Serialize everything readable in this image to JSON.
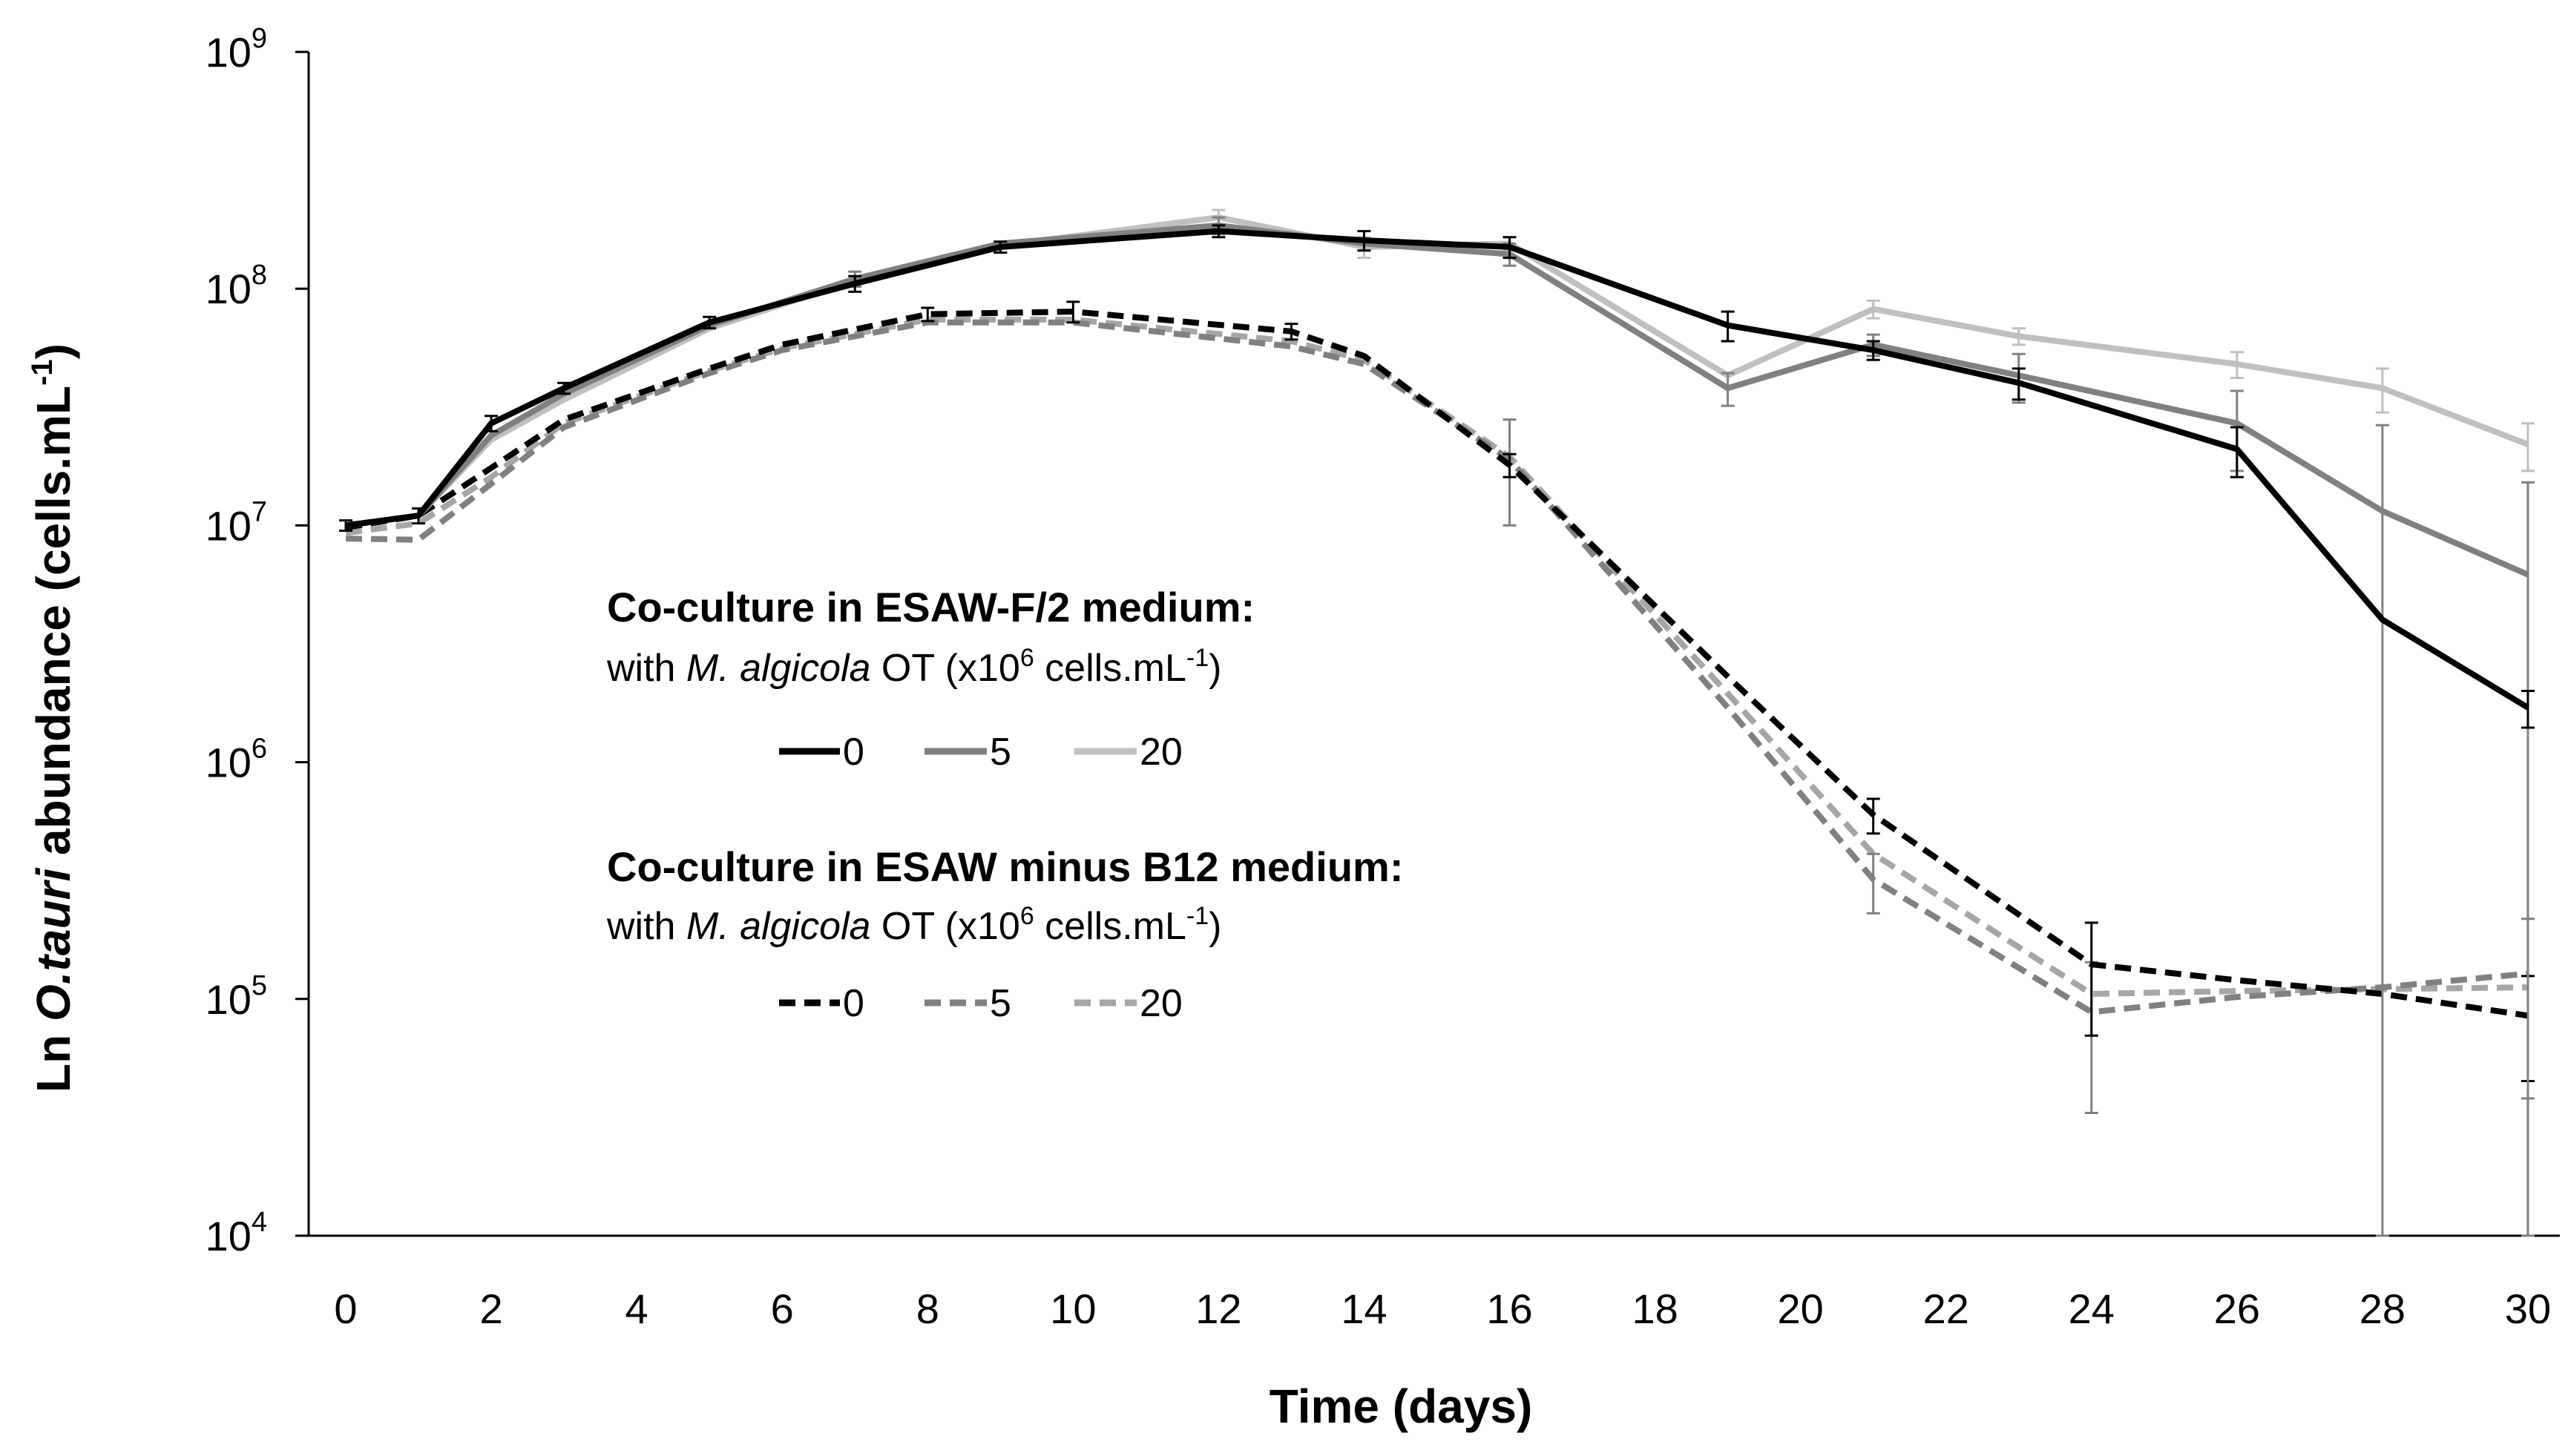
{
  "chart_data": {
    "type": "line",
    "title": "",
    "xlabel": "Time (days)",
    "ylabel": {
      "prefix": "Ln ",
      "italic": "O.tauri",
      "middle": " abundance (cells.mL",
      "sup": "-1",
      "suffix": ")"
    },
    "x_ticks": [
      "0",
      "2",
      "4",
      "6",
      "8",
      "10",
      "12",
      "14",
      "16",
      "18",
      "20",
      "22",
      "24",
      "26",
      "28",
      "30"
    ],
    "xlim": [
      0,
      30
    ],
    "y_scale": "log",
    "ylim": [
      10000,
      1000000000
    ],
    "y_ticks": [
      {
        "base": "10",
        "exp": "4",
        "value": 10000
      },
      {
        "base": "10",
        "exp": "5",
        "value": 100000
      },
      {
        "base": "10",
        "exp": "6",
        "value": 1000000
      },
      {
        "base": "10",
        "exp": "7",
        "value": 10000000
      },
      {
        "base": "10",
        "exp": "8",
        "value": 100000000
      },
      {
        "base": "10",
        "exp": "9",
        "value": 1000000000
      }
    ],
    "legend": {
      "groups": [
        {
          "title": "Co-culture in ESAW-F/2 medium:",
          "subtitle": {
            "pre": "with ",
            "italic": "M. algicola",
            "mid": " OT (x10",
            "sup1": "6",
            "mid2": " cells.mL",
            "sup2": "-1",
            "post": ")"
          },
          "entries": [
            "0",
            "5",
            "20"
          ],
          "style": "solid"
        },
        {
          "title": "Co-culture in ESAW minus B12 medium:",
          "subtitle": {
            "pre": "with ",
            "italic": "M. algicola",
            "mid": " OT (x10",
            "sup1": "6",
            "mid2": " cells.mL",
            "sup2": "-1",
            "post": ")"
          },
          "entries": [
            "0",
            "5",
            "20"
          ],
          "style": "dashed"
        }
      ]
    },
    "series": [
      {
        "name": "ESAW-F/2, 0",
        "color": "#000000",
        "dash": false,
        "x": [
          0,
          1,
          2,
          3,
          5,
          7,
          9,
          12,
          14,
          16,
          19,
          21,
          23,
          26,
          28,
          30
        ],
        "y": [
          10000000,
          11000000,
          27000000,
          38000000,
          72000000,
          105000000,
          150000000,
          175000000,
          160000000,
          150000000,
          70000000,
          55000000,
          40000000,
          21000000,
          4000000,
          1700000
        ],
        "err": [
          500000,
          800000,
          2000000,
          2000000,
          4000000,
          8000000,
          8000000,
          10000000,
          15000000,
          15000000,
          10000000,
          5000000,
          6000000,
          5000000,
          0,
          300000
        ]
      },
      {
        "name": "ESAW-F/2, 5",
        "color": "#808080",
        "dash": false,
        "x": [
          0,
          1,
          2,
          3,
          5,
          7,
          9,
          12,
          14,
          16,
          19,
          21,
          23,
          26,
          28,
          30
        ],
        "y": [
          10000000,
          11000000,
          24000000,
          36000000,
          70000000,
          110000000,
          155000000,
          185000000,
          155000000,
          140000000,
          38000000,
          58000000,
          43000000,
          27000000,
          11500000,
          6200000
        ],
        "err": [
          0,
          0,
          0,
          0,
          0,
          8000000,
          0,
          15000000,
          0,
          15000000,
          6000000,
          6000000,
          10000000,
          10000000,
          15000000,
          9000000
        ]
      },
      {
        "name": "ESAW-F/2, 20",
        "color": "#c0c0c0",
        "dash": false,
        "x": [
          0,
          1,
          2,
          3,
          5,
          7,
          9,
          12,
          14,
          16,
          19,
          21,
          23,
          26,
          28,
          30
        ],
        "y": [
          10000000,
          11000000,
          23000000,
          34000000,
          68000000,
          108000000,
          152000000,
          200000000,
          150000000,
          155000000,
          43000000,
          82000000,
          63000000,
          48000000,
          38000000,
          22000000
        ],
        "err": [
          0,
          0,
          0,
          0,
          0,
          0,
          0,
          15000000,
          15000000,
          10000000,
          0,
          7000000,
          5000000,
          6000000,
          8000000,
          5000000
        ]
      },
      {
        "name": "ESAW minus B12, 0",
        "color": "#000000",
        "dash": true,
        "x": [
          0,
          1,
          2,
          3,
          5,
          6,
          8,
          10,
          13,
          14,
          16,
          19,
          21,
          24,
          26,
          28,
          30
        ],
        "y": [
          9800000,
          11000000,
          17500000,
          28000000,
          46000000,
          58000000,
          78000000,
          80000000,
          66000000,
          52000000,
          18000000,
          2300000,
          600000,
          140000,
          120000,
          105000,
          85000
        ],
        "err": [
          0,
          0,
          0,
          0,
          0,
          0,
          5000000,
          8000000,
          5000000,
          0,
          2000000,
          0,
          100000,
          70000,
          0,
          0,
          40000
        ]
      },
      {
        "name": "ESAW minus B12, 5",
        "color": "#808080",
        "dash": true,
        "x": [
          0,
          1,
          2,
          3,
          5,
          6,
          8,
          10,
          13,
          14,
          16,
          19,
          21,
          24,
          26,
          28,
          30
        ],
        "y": [
          8800000,
          8700000,
          15000000,
          26000000,
          44000000,
          55000000,
          72000000,
          72000000,
          57000000,
          48000000,
          19000000,
          1700000,
          320000,
          88000,
          102000,
          112000,
          128000
        ],
        "err": [
          0,
          0,
          0,
          0,
          0,
          0,
          0,
          0,
          0,
          0,
          9000000,
          0,
          90000,
          55000,
          0,
          0,
          90000
        ]
      },
      {
        "name": "ESAW minus B12, 20",
        "color": "#a6a6a6",
        "dash": true,
        "x": [
          0,
          1,
          2,
          3,
          5,
          6,
          8,
          10,
          13,
          14,
          16,
          19,
          21,
          24,
          26,
          28,
          30
        ],
        "y": [
          9300000,
          10200000,
          16000000,
          27000000,
          45000000,
          56000000,
          74000000,
          74000000,
          60000000,
          50000000,
          19500000,
          1950000,
          410000,
          105000,
          108000,
          110000,
          112000
        ],
        "err": [
          0,
          0,
          0,
          0,
          0,
          0,
          0,
          0,
          0,
          0,
          0,
          0,
          0,
          0,
          0,
          0,
          0
        ]
      }
    ]
  }
}
